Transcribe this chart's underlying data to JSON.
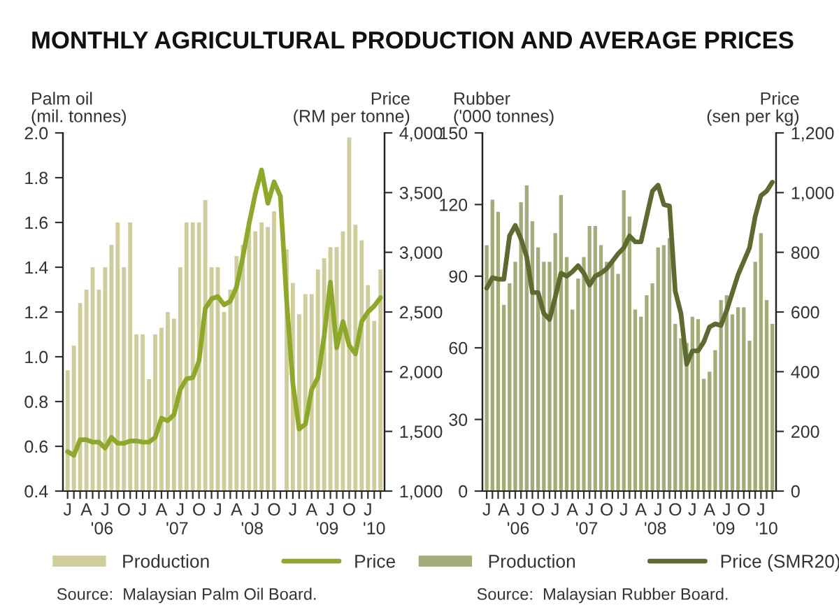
{
  "chart_data": [
    {
      "type": "bar",
      "title": "MONTHLY AGRICULTURAL PRODUCTION AND AVERAGE PRICES",
      "ylabel": "Palm oil\n(mil. tonnes)",
      "y2label": "Price\n(RM per tonne)",
      "categories": [
        "J",
        null,
        null,
        "A",
        null,
        null,
        "J",
        null,
        null,
        "O",
        null,
        null,
        "J",
        null,
        null,
        "A",
        null,
        null,
        "J",
        null,
        null,
        "O",
        null,
        null,
        "J",
        null,
        null,
        "A",
        null,
        null,
        "J",
        null,
        null,
        "O",
        null,
        null,
        "J",
        null,
        null,
        "A",
        null,
        null,
        "J",
        null,
        null,
        "O",
        null,
        null,
        "J",
        null,
        null
      ],
      "series": [
        {
          "name": "Production",
          "color": "#d0cd9c",
          "values": [
            0.94,
            1.05,
            1.24,
            1.3,
            1.4,
            1.3,
            1.4,
            1.5,
            1.6,
            1.4,
            1.6,
            1.1,
            1.1,
            0.9,
            1.1,
            1.13,
            1.2,
            1.17,
            1.4,
            1.6,
            1.6,
            1.6,
            1.7,
            1.4,
            1.4,
            1.2,
            1.3,
            1.45,
            1.5,
            1.6,
            1.56,
            1.6,
            1.58,
            1.65,
            null,
            1.48,
            1.33,
            1.19,
            1.28,
            1.28,
            1.39,
            1.44,
            1.49,
            1.49,
            1.56,
            1.98,
            1.59,
            1.52,
            1.32,
            1.16,
            1.39
          ]
        },
        {
          "name": "Price",
          "type": "line",
          "axis": "y2",
          "color": "#8ea82c",
          "values": [
            1330,
            1300,
            1430,
            1430,
            1410,
            1410,
            1360,
            1450,
            1400,
            1400,
            1420,
            1420,
            1410,
            1410,
            1450,
            1610,
            1590,
            1640,
            1850,
            1940,
            1950,
            2090,
            2530,
            2610,
            2630,
            2560,
            2590,
            2710,
            2960,
            3240,
            3490,
            3690,
            3410,
            3590,
            3470,
            2600,
            1900,
            1520,
            1560,
            1850,
            1950,
            2300,
            2750,
            2200,
            2420,
            2220,
            2150,
            2420,
            2500,
            2550,
            2620
          ]
        }
      ],
      "ylim": [
        0.4,
        2.0
      ],
      "yticks": [
        0.4,
        0.6,
        0.8,
        {
          "value": 1,
          "label": "1.0"
        },
        1.2,
        1.4,
        1.6,
        1.8,
        {
          "value": 2,
          "label": "2.0"
        }
      ],
      "y2lim": [
        1000,
        4000
      ],
      "y2ticks": [
        {
          "value": 1000,
          "label": "1,000"
        },
        {
          "value": 1500,
          "label": "1,500"
        },
        {
          "value": 2000,
          "label": "2,000"
        },
        {
          "value": 2500,
          "label": "2,500"
        },
        {
          "value": 3000,
          "label": "3,000"
        },
        {
          "value": 3500,
          "label": "3,500"
        },
        {
          "value": 4000,
          "label": "4,000"
        }
      ],
      "grid": false,
      "legend": "bottom",
      "annotations": [
        "'06",
        "'07",
        "'08",
        "'09",
        "'10",
        "Source:  Malaysian Palm Oil Board."
      ]
    },
    {
      "type": "bar",
      "ylabel": "Rubber\n('000 tonnes)",
      "y2label": "Price\n(sen per kg)",
      "categories": [
        "J",
        null,
        null,
        "A",
        null,
        null,
        "J",
        null,
        null,
        "O",
        null,
        null,
        "J",
        null,
        null,
        "A",
        null,
        null,
        "J",
        null,
        null,
        "O",
        null,
        null,
        "J",
        null,
        null,
        "A",
        null,
        null,
        "J",
        null,
        null,
        "O",
        null,
        null,
        "J",
        null,
        null,
        "A",
        null,
        null,
        "J",
        null,
        null,
        "O",
        null,
        null,
        "J",
        null,
        null
      ],
      "series": [
        {
          "name": "Production",
          "color": "#a3ad79",
          "values": [
            103,
            122,
            117,
            78,
            87,
            96,
            121,
            128,
            113,
            102,
            96,
            96,
            108,
            124,
            98,
            76,
            89,
            98,
            111,
            111,
            103,
            96,
            96,
            91,
            126,
            115,
            76,
            73,
            82,
            87,
            102,
            103,
            106,
            70,
            64,
            62,
            73,
            72,
            47,
            50,
            59,
            80,
            82,
            74,
            77,
            77,
            63,
            96,
            108,
            80,
            70
          ]
        },
        {
          "name": "Price (SMR20)",
          "type": "line",
          "axis": "y2",
          "color": "#5d6a30",
          "values": [
            680,
            715,
            710,
            710,
            855,
            890,
            845,
            785,
            665,
            665,
            595,
            575,
            650,
            730,
            720,
            735,
            755,
            730,
            690,
            720,
            730,
            745,
            770,
            795,
            815,
            855,
            835,
            835,
            920,
            1005,
            1025,
            960,
            955,
            670,
            595,
            425,
            470,
            470,
            500,
            550,
            560,
            555,
            605,
            665,
            725,
            770,
            815,
            920,
            990,
            1005,
            1035
          ]
        }
      ],
      "ylim": [
        0,
        150
      ],
      "yticks": [
        0,
        30,
        60,
        90,
        120,
        150
      ],
      "y2lim": [
        0,
        1200
      ],
      "y2ticks": [
        0,
        200,
        400,
        600,
        800,
        {
          "value": 1000,
          "label": "1,000"
        },
        {
          "value": 1200,
          "label": "1,200"
        }
      ],
      "grid": false,
      "legend": "bottom",
      "annotations": [
        "'06",
        "'07",
        "'08",
        "'09",
        "'10",
        "Source:  Malaysian Rubber Board."
      ]
    }
  ]
}
